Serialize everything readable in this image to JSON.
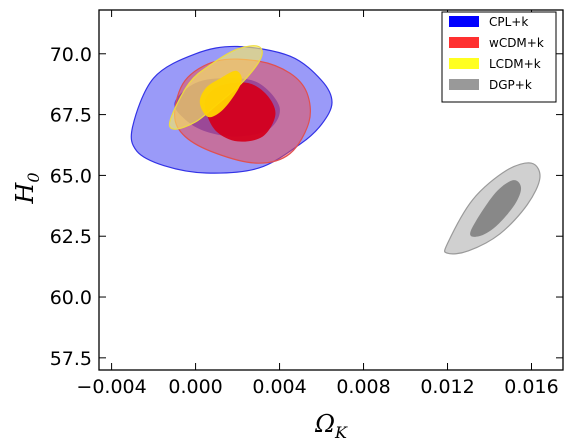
{
  "chart_data": {
    "type": "contour",
    "xlabel": "Ω",
    "xlabel_sub": "K",
    "ylabel": "H",
    "ylabel_sub": "0",
    "xlim": [
      -0.0046,
      0.0175
    ],
    "ylim": [
      57.0,
      71.8
    ],
    "xticks": [
      -0.004,
      0.0,
      0.004,
      0.008,
      0.012,
      0.016
    ],
    "xtick_labels": [
      "−0.004",
      "0.000",
      "0.004",
      "0.008",
      "0.012",
      "0.016"
    ],
    "yticks": [
      57.5,
      60.0,
      62.5,
      65.0,
      67.5,
      70.0
    ],
    "ytick_labels": [
      "57.5",
      "60.0",
      "62.5",
      "65.0",
      "67.5",
      "70.0"
    ],
    "legend_position": "top-right",
    "series": [
      {
        "name": "CPL+k",
        "color": "#0000ff",
        "outer": [
          [
            -0.003,
            67.0
          ],
          [
            -0.0028,
            66.0
          ],
          [
            -0.0015,
            65.4
          ],
          [
            0.0005,
            65.1
          ],
          [
            0.003,
            65.3
          ],
          [
            0.005,
            66.3
          ],
          [
            0.006,
            67.1
          ],
          [
            0.0065,
            68.0
          ],
          [
            0.006,
            68.9
          ],
          [
            0.0045,
            69.9
          ],
          [
            0.002,
            70.3
          ],
          [
            0.0,
            70.0
          ],
          [
            -0.002,
            69.0
          ]
        ],
        "inner": [
          [
            -0.001,
            68.0
          ],
          [
            -0.0005,
            67.3
          ],
          [
            0.0005,
            66.8
          ],
          [
            0.002,
            66.6
          ],
          [
            0.0035,
            66.9
          ],
          [
            0.004,
            67.8
          ],
          [
            0.003,
            68.8
          ],
          [
            0.0015,
            69.0
          ],
          [
            0.0,
            68.8
          ]
        ]
      },
      {
        "name": "wCDM+k",
        "color": "#ff0000",
        "outer": [
          [
            -0.001,
            67.5
          ],
          [
            -0.0005,
            66.6
          ],
          [
            0.001,
            65.9
          ],
          [
            0.003,
            65.5
          ],
          [
            0.0045,
            65.9
          ],
          [
            0.0054,
            67.2
          ],
          [
            0.0053,
            68.4
          ],
          [
            0.0045,
            69.2
          ],
          [
            0.003,
            69.7
          ],
          [
            0.001,
            69.7
          ],
          [
            -0.0005,
            68.9
          ]
        ],
        "inner": [
          [
            0.0005,
            67.6
          ],
          [
            0.001,
            66.8
          ],
          [
            0.002,
            66.4
          ],
          [
            0.0032,
            66.6
          ],
          [
            0.0038,
            67.5
          ],
          [
            0.0034,
            68.3
          ],
          [
            0.0025,
            68.8
          ],
          [
            0.0012,
            68.7
          ],
          [
            0.0005,
            68.2
          ]
        ]
      },
      {
        "name": "LCDM+k",
        "color": "#ffff00",
        "outer": [
          [
            -0.0012,
            67.3
          ],
          [
            -0.001,
            66.9
          ],
          [
            0.0,
            67.2
          ],
          [
            0.001,
            67.9
          ],
          [
            0.0022,
            68.8
          ],
          [
            0.0031,
            69.8
          ],
          [
            0.003,
            70.3
          ],
          [
            0.002,
            70.2
          ],
          [
            0.0008,
            69.6
          ],
          [
            -0.0003,
            68.8
          ]
        ],
        "inner": [
          [
            0.0002,
            68.0
          ],
          [
            0.0006,
            67.4
          ],
          [
            0.0013,
            67.7
          ],
          [
            0.002,
            68.5
          ],
          [
            0.0022,
            69.0
          ],
          [
            0.0019,
            69.3
          ],
          [
            0.0012,
            69.0
          ],
          [
            0.0005,
            68.6
          ]
        ]
      },
      {
        "name": "DGP+k",
        "color": "#808080",
        "outer": [
          [
            0.012,
            62.2
          ],
          [
            0.012,
            61.8
          ],
          [
            0.013,
            61.9
          ],
          [
            0.0145,
            62.6
          ],
          [
            0.0158,
            63.8
          ],
          [
            0.0164,
            64.9
          ],
          [
            0.016,
            65.5
          ],
          [
            0.0148,
            65.2
          ],
          [
            0.0132,
            64.0
          ]
        ],
        "inner": [
          [
            0.0131,
            62.7
          ],
          [
            0.0135,
            62.5
          ],
          [
            0.0143,
            62.9
          ],
          [
            0.0152,
            63.8
          ],
          [
            0.0155,
            64.5
          ],
          [
            0.0151,
            64.8
          ],
          [
            0.0142,
            64.2
          ]
        ]
      }
    ]
  }
}
